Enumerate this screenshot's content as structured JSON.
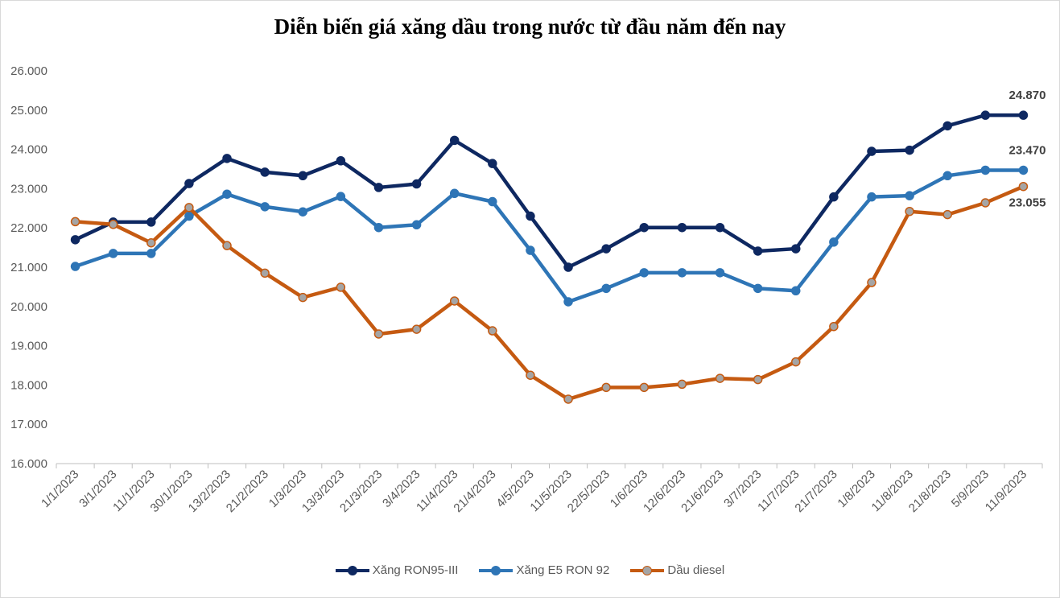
{
  "chart_data": {
    "type": "line",
    "title": "Diễn biến giá xăng dầu trong nước từ đầu năm đến nay",
    "xlabel": "",
    "ylabel": "",
    "ylim": [
      16000,
      26000
    ],
    "y_ticks": [
      "16.000",
      "17.000",
      "18.000",
      "19.000",
      "20.000",
      "21.000",
      "22.000",
      "23.000",
      "24.000",
      "25.000",
      "26.000"
    ],
    "categories": [
      "1/1/2023",
      "3/1/2023",
      "11/1/2023",
      "30/1/2023",
      "13/2/2023",
      "21/2/2023",
      "1/3/2023",
      "13/3/2023",
      "21/3/2023",
      "3/4/2023",
      "11/4/2023",
      "21/4/2023",
      "4/5/2023",
      "11/5/2023",
      "22/5/2023",
      "1/6/2023",
      "12/6/2023",
      "21/6/2023",
      "3/7/2023",
      "11/7/2023",
      "21/7/2023",
      "1/8/2023",
      "11/8/2023",
      "21/8/2023",
      "5/9/2023",
      "11/9/2023"
    ],
    "series": [
      {
        "name": "Xăng RON95-III",
        "color": "#0e2861",
        "values": [
          21700,
          22150,
          22150,
          23130,
          23770,
          23420,
          23330,
          23710,
          23030,
          23120,
          24230,
          23640,
          22300,
          21000,
          21470,
          22010,
          22010,
          22010,
          21410,
          21470,
          22790,
          23950,
          23980,
          24600,
          24870,
          24870
        ],
        "end_label": "24.870"
      },
      {
        "name": "Xăng E5 RON 92",
        "color": "#2e75b6",
        "values": [
          21020,
          21350,
          21350,
          22300,
          22860,
          22540,
          22410,
          22800,
          22010,
          22080,
          22880,
          22670,
          21430,
          20120,
          20460,
          20860,
          20860,
          20860,
          20460,
          20400,
          21640,
          22790,
          22820,
          23330,
          23470,
          23470
        ],
        "end_label": "23.470"
      },
      {
        "name": "Dầu diesel",
        "color": "#c55a11",
        "marker_color": "#a5a5a5",
        "values": [
          22160,
          22090,
          21620,
          22520,
          21550,
          20850,
          20230,
          20490,
          19300,
          19420,
          20140,
          19380,
          18250,
          17640,
          17940,
          17940,
          18020,
          18170,
          18140,
          18590,
          19490,
          20610,
          22420,
          22340,
          22640,
          23055
        ],
        "end_label": "23.055"
      }
    ],
    "legend_position": "bottom"
  }
}
